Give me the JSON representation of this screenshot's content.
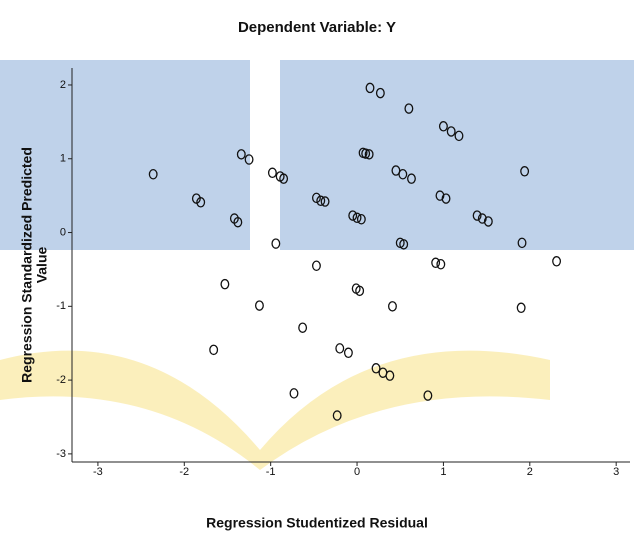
{
  "chart_data": {
    "type": "scatter",
    "title": "Dependent Variable: Y",
    "x_label": "Regression Studentized Residual",
    "y_label_lines": [
      "Regression Standardized Predicted",
      "Value"
    ],
    "xlim": [
      -3.3,
      3.16
    ],
    "ylim": [
      -3.11,
      2.23
    ],
    "xticks": [
      -3,
      -2,
      -1,
      0,
      1,
      2,
      3
    ],
    "yticks": [
      -3,
      -2,
      -1,
      0,
      1,
      2
    ],
    "color": "#111111",
    "x": [
      0.15,
      0.27,
      0.6,
      1.0,
      1.09,
      1.18,
      -1.34,
      -1.25,
      0.07,
      0.1,
      0.14,
      -2.36,
      -0.98,
      -0.89,
      -0.85,
      0.45,
      0.53,
      0.63,
      1.94,
      -1.86,
      -1.81,
      -0.47,
      -0.42,
      -0.37,
      0.96,
      1.03,
      -0.05,
      0.0,
      0.05,
      1.39,
      1.45,
      1.52,
      -1.42,
      -1.38,
      -0.94,
      0.5,
      0.54,
      1.91,
      2.31,
      -0.47,
      0.91,
      0.97,
      -1.53,
      -0.01,
      0.03,
      -1.13,
      0.41,
      1.9,
      -0.63,
      -1.66,
      -0.2,
      -0.1,
      0.22,
      0.3,
      0.38,
      -0.73,
      0.82,
      -0.23
    ],
    "y": [
      1.96,
      1.89,
      1.68,
      1.44,
      1.37,
      1.31,
      1.06,
      0.99,
      1.08,
      1.07,
      1.06,
      0.79,
      0.81,
      0.76,
      0.73,
      0.84,
      0.79,
      0.73,
      0.83,
      0.46,
      0.41,
      0.47,
      0.43,
      0.42,
      0.5,
      0.46,
      0.23,
      0.2,
      0.18,
      0.23,
      0.19,
      0.15,
      0.19,
      0.14,
      -0.15,
      -0.14,
      -0.16,
      -0.14,
      -0.39,
      -0.45,
      -0.41,
      -0.43,
      -0.7,
      -0.76,
      -0.79,
      -0.99,
      -1.0,
      -1.02,
      -1.29,
      -1.59,
      -1.57,
      -1.63,
      -1.84,
      -1.9,
      -1.94,
      -2.18,
      -2.21,
      -2.48
    ]
  }
}
